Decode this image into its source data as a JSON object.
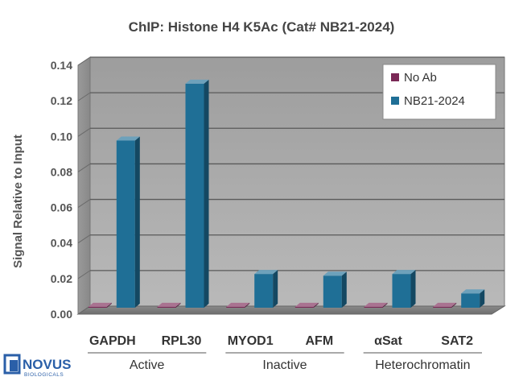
{
  "chart_data": {
    "type": "bar",
    "title": "ChIP: Histone H4 K5Ac (Cat# NB21-2024)",
    "ylabel": "Signal Relative to Input",
    "xlabel": "",
    "ylim": [
      0,
      0.14
    ],
    "yticks": [
      "0.00",
      "0.02",
      "0.04",
      "0.06",
      "0.08",
      "0.10",
      "0.12",
      "0.14"
    ],
    "categories": [
      "GAPDH",
      "RPL30",
      "MYOD1",
      "AFM",
      "αSat",
      "SAT2"
    ],
    "groups": [
      {
        "label": "Active",
        "categories": [
          "GAPDH",
          "RPL30"
        ]
      },
      {
        "label": "Inactive",
        "categories": [
          "MYOD1",
          "AFM"
        ]
      },
      {
        "label": "Heterochromatin",
        "categories": [
          "αSat",
          "SAT2"
        ]
      }
    ],
    "series": [
      {
        "name": "No Ab",
        "color": "#7a2856",
        "values": [
          0.0005,
          0.0005,
          0.0005,
          0.0005,
          0.0005,
          0.0005
        ]
      },
      {
        "name": "NB21-2024",
        "color": "#1f6f96",
        "values": [
          0.094,
          0.126,
          0.019,
          0.018,
          0.019,
          0.008
        ]
      }
    ],
    "legend_position": "top-right",
    "grid": true,
    "style": "3d-bar"
  },
  "logo": {
    "name": "NOVUS",
    "sub": "BIOLOGICALS"
  }
}
